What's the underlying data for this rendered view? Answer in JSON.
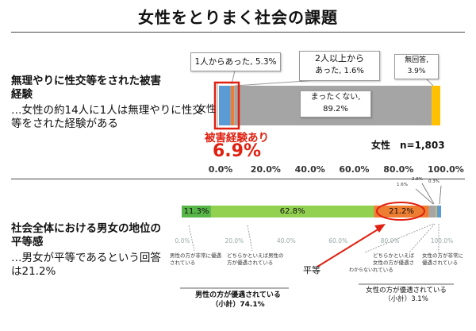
{
  "title": "女性をとりまく社会の課題",
  "section1": {
    "heading": "無理やりに性交等をされた被害経験",
    "body": "…女性の約14人に1人は無理やりに性交等をされた経験がある",
    "row_label": "女性",
    "sample": "女性　n=1,803",
    "callouts": {
      "once": "1人からあった, 5.3%",
      "multi_line1": "2人以上から",
      "multi_line2": "あった, 1.6%",
      "none_line1": "まったくない,",
      "none_line2": "89.2%",
      "noans_line1": "無回答,",
      "noans_line2": "3.9%"
    },
    "exp_label": "被害経験あり",
    "exp_value": "6.9%",
    "ticks": [
      "0.0%",
      "20.0%",
      "40.0%",
      "60.0%",
      "80.0%",
      "100.0%"
    ]
  },
  "section2": {
    "heading": "社会全体における男女の地位の平等感",
    "body": "…男女が平等であるという回答は21.2%",
    "bar_labels": [
      "11.3%",
      "62.8%",
      "21.2%"
    ],
    "small_labels": [
      "1.6%",
      "2.8%",
      "0.3%"
    ],
    "ticks": [
      "0.0%",
      "20.0%",
      "40.0%",
      "60.0%",
      "80.0%",
      "100.0%"
    ],
    "notes": {
      "men_much": "男性の方が非常に優遇されている",
      "men_somewhat": "どちらかといえば男性の方が優遇されている",
      "equal": "平等",
      "dont_know": "わからない",
      "women_somewhat": "どちらかといえば女性の方が優遇されている",
      "women_much": "女性の方が非常に優遇されている"
    },
    "men_total_line1": "男性の方が優遇されている",
    "men_total_line2": "（小計）74.1%",
    "women_total_line1": "女性の方が優遇されている",
    "women_total_line2": "（小計）3.1%"
  },
  "chart_data": [
    {
      "type": "bar",
      "orientation": "horizontal-stacked",
      "categories": [
        "女性"
      ],
      "series": [
        {
          "name": "1人からあった",
          "values": [
            5.3
          ],
          "color": "#5b9bd5"
        },
        {
          "name": "2人以上からあった",
          "values": [
            1.6
          ],
          "color": "#ed7d31"
        },
        {
          "name": "まったくない",
          "values": [
            89.2
          ],
          "color": "#a5a5a5"
        },
        {
          "name": "無回答",
          "values": [
            3.9
          ],
          "color": "#ffc000"
        }
      ],
      "xlim": [
        0,
        100
      ]
    },
    {
      "type": "bar",
      "orientation": "horizontal-stacked",
      "categories": [
        ""
      ],
      "series": [
        {
          "name": "男性の方が非常に優遇されている",
          "values": [
            11.3
          ],
          "color": "#58b648"
        },
        {
          "name": "どちらかといえば男性の方が優遇されている",
          "values": [
            62.8
          ],
          "color": "#92d050"
        },
        {
          "name": "平等",
          "values": [
            21.2
          ],
          "color": "#ed7d31"
        },
        {
          "name": "どちらかといえば女性の方が優遇されている",
          "values": [
            2.8
          ],
          "color": "#a5a5a5"
        },
        {
          "name": "女性の方が非常に優遇されている",
          "values": [
            0.3
          ],
          "color": "#ffc000"
        },
        {
          "name": "わからない",
          "values": [
            1.6
          ],
          "color": "#5b9bd5"
        }
      ],
      "xlim": [
        0,
        100
      ]
    }
  ]
}
